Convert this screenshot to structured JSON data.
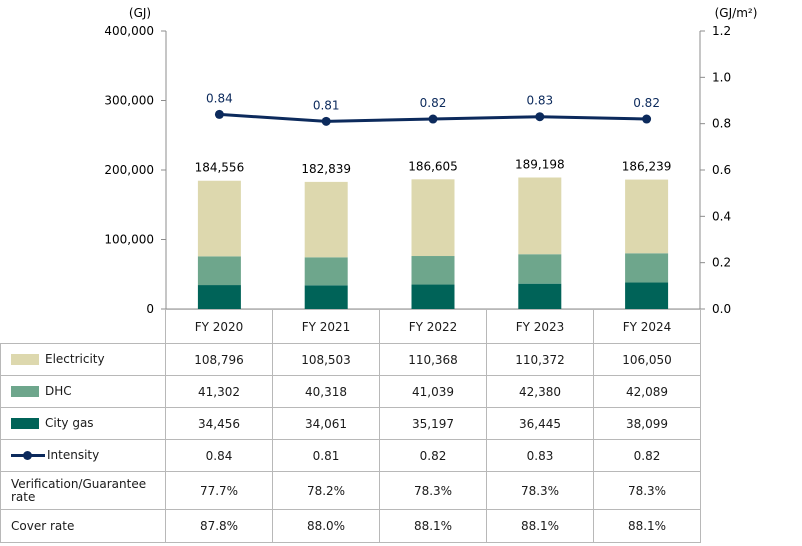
{
  "chart_data": {
    "type": "bar",
    "categories": [
      "FY 2020",
      "FY 2021",
      "FY 2022",
      "FY 2023",
      "FY 2024"
    ],
    "series": [
      {
        "name": "Electricity",
        "kind": "stacked-bar",
        "values": [
          108796,
          108503,
          110368,
          110372,
          106050
        ],
        "color": "#ddd8ae"
      },
      {
        "name": "DHC",
        "kind": "stacked-bar",
        "values": [
          41302,
          40318,
          41039,
          42380,
          42089
        ],
        "color": "#6ea68c"
      },
      {
        "name": "City gas",
        "kind": "stacked-bar",
        "values": [
          34456,
          34061,
          35197,
          36445,
          38099
        ],
        "color": "#006358"
      },
      {
        "name": "Intensity",
        "kind": "line",
        "axis": "right",
        "values": [
          0.84,
          0.81,
          0.82,
          0.83,
          0.82
        ],
        "color": "#0c2a5c"
      }
    ],
    "stack_order_bottom_to_top": [
      "City gas",
      "DHC",
      "Electricity"
    ],
    "totals": [
      "184,556",
      "182,839",
      "186,605",
      "189,198",
      "186,239"
    ],
    "intensity_labels": [
      "0.84",
      "0.81",
      "0.82",
      "0.83",
      "0.82"
    ],
    "left_axis": {
      "unit": "(GJ)",
      "ylim": [
        0,
        400000
      ],
      "ticks": [
        "0",
        "100,000",
        "200,000",
        "300,000",
        "400,000"
      ]
    },
    "right_axis": {
      "unit": "(GJ/m²)",
      "ylim": [
        0,
        1.2
      ],
      "ticks": [
        "0.0",
        "0.2",
        "0.4",
        "0.6",
        "0.8",
        "1.0",
        "1.2"
      ]
    },
    "grid": false,
    "legend": "table-rows"
  },
  "table": {
    "headers": [
      "FY 2020",
      "FY 2021",
      "FY 2022",
      "FY 2023",
      "FY 2024"
    ],
    "rows": [
      {
        "label": "Electricity",
        "marker": "swatch",
        "color": "#ddd8ae",
        "cells": [
          "108,796",
          "108,503",
          "110,368",
          "110,372",
          "106,050"
        ]
      },
      {
        "label": "DHC",
        "marker": "swatch",
        "color": "#6ea68c",
        "cells": [
          "41,302",
          "40,318",
          "41,039",
          "42,380",
          "42,089"
        ]
      },
      {
        "label": "City gas",
        "marker": "swatch",
        "color": "#006358",
        "cells": [
          "34,456",
          "34,061",
          "35,197",
          "36,445",
          "38,099"
        ]
      },
      {
        "label": "Intensity",
        "marker": "line",
        "color": "#0c2a5c",
        "cells": [
          "0.84",
          "0.81",
          "0.82",
          "0.83",
          "0.82"
        ]
      },
      {
        "label": "Verification/Guarantee rate",
        "marker": "none",
        "cells": [
          "77.7%",
          "78.2%",
          "78.3%",
          "78.3%",
          "78.3%"
        ]
      },
      {
        "label": "Cover rate",
        "marker": "none",
        "cells": [
          "87.8%",
          "88.0%",
          "88.1%",
          "88.1%",
          "88.1%"
        ]
      }
    ]
  }
}
